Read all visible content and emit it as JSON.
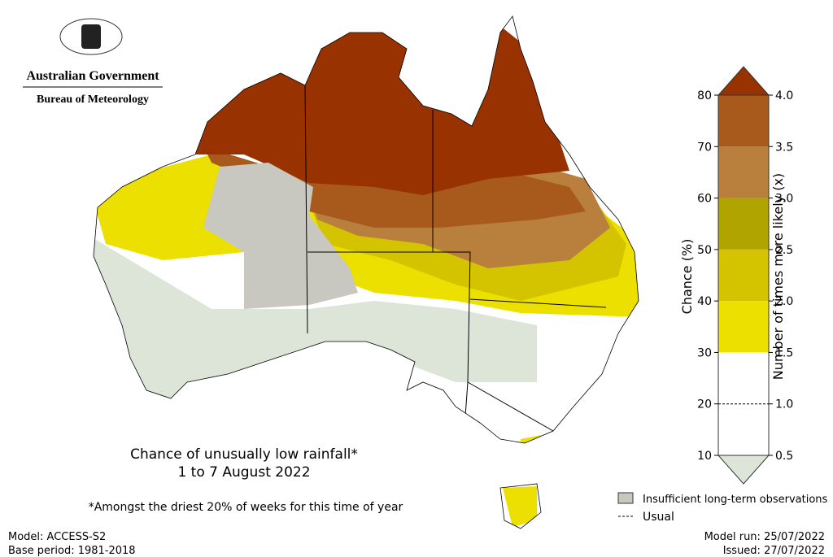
{
  "header": {
    "government": "Australian Government",
    "agency": "Bureau of Meteorology"
  },
  "title": "Chance of unusually low rainfall*",
  "subtitle": "1 to 7 August 2022",
  "footnote": "*Amongst the driest 20% of weeks for this time of year",
  "legend": {
    "chance_label": "Chance (%)",
    "ratio_label": "Number of times more likely (x)",
    "chance_ticks": [
      10,
      20,
      30,
      40,
      50,
      60,
      70,
      80
    ],
    "ratio_ticks": [
      {
        "value": 0.5,
        "label": "0.5"
      },
      {
        "value": 1,
        "label": "1.0"
      },
      {
        "value": 1.5,
        "label": "1.5"
      },
      {
        "value": 2,
        "label": "2.0"
      },
      {
        "value": 2.5,
        "label": "2.5"
      },
      {
        "value": 3,
        "label": "3.0"
      },
      {
        "value": 3.5,
        "label": "3.5"
      },
      {
        "value": 4,
        "label": "4.0"
      }
    ],
    "colors": [
      "#dde5d8",
      "#ffffff",
      "#ffffff",
      "#ece000",
      "#d4c400",
      "#b0a400",
      "#b8803c",
      "#a85a1c",
      "#983200"
    ],
    "usual_chance": 20,
    "usual_label": "Usual",
    "insufficient_label": "Insufficient long-term observations",
    "insufficient_color": "#c8c8c0"
  },
  "footer": {
    "model": "Model: ACCESS-S2",
    "base_period": "Base period: 1981-2018",
    "model_run": "Model run: 25/07/2022",
    "issued": "Issued: 27/07/2022"
  }
}
